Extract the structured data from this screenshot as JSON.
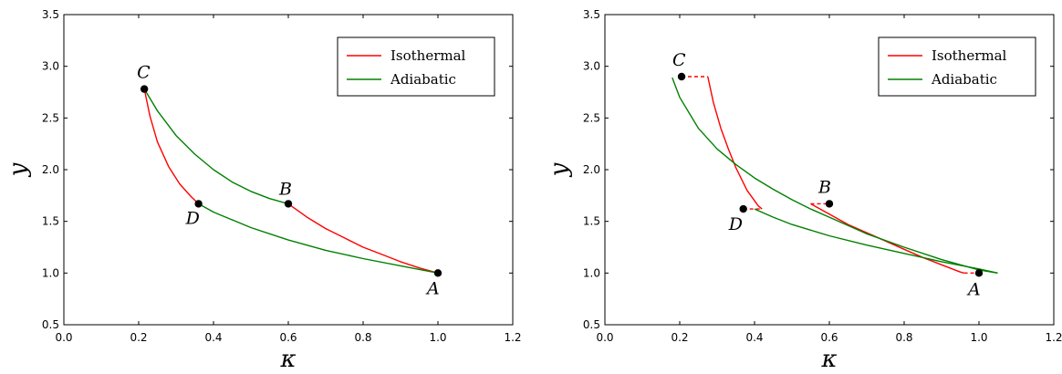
{
  "chart_data": [
    {
      "type": "line",
      "xlabel": "κ",
      "ylabel": "y",
      "xlim": [
        0.0,
        1.2
      ],
      "ylim": [
        0.5,
        3.5
      ],
      "xticks": [
        "0.0",
        "0.2",
        "0.4",
        "0.6",
        "0.8",
        "1.0",
        "1.2"
      ],
      "yticks": [
        "0.5",
        "1.0",
        "1.5",
        "2.0",
        "2.5",
        "3.0",
        "3.5"
      ],
      "grid": false,
      "legend": {
        "position": "top-right",
        "entries": [
          {
            "label": "Isothermal",
            "color": "#ff0000"
          },
          {
            "label": "Adiabatic",
            "color": "#008000"
          }
        ]
      },
      "points": [
        {
          "label": "C",
          "x": 0.215,
          "y": 2.78
        },
        {
          "label": "D",
          "x": 0.36,
          "y": 1.67
        },
        {
          "label": "B",
          "x": 0.6,
          "y": 1.67
        },
        {
          "label": "A",
          "x": 1.0,
          "y": 1.0
        }
      ],
      "series": [
        {
          "kind": "isothermal",
          "color": "#ff0000",
          "style": "solid",
          "x": [
            0.215,
            0.23,
            0.25,
            0.28,
            0.31,
            0.34,
            0.36
          ],
          "y": [
            2.78,
            2.52,
            2.27,
            2.03,
            1.86,
            1.74,
            1.67
          ]
        },
        {
          "kind": "isothermal",
          "color": "#ff0000",
          "style": "solid",
          "x": [
            0.6,
            0.65,
            0.7,
            0.75,
            0.8,
            0.85,
            0.9,
            0.95,
            1.0
          ],
          "y": [
            1.67,
            1.54,
            1.43,
            1.34,
            1.25,
            1.18,
            1.11,
            1.05,
            1.0
          ]
        },
        {
          "kind": "adiabatic",
          "color": "#008000",
          "style": "solid",
          "x": [
            0.215,
            0.25,
            0.3,
            0.35,
            0.4,
            0.45,
            0.5,
            0.55,
            0.6
          ],
          "y": [
            2.78,
            2.57,
            2.33,
            2.15,
            2.0,
            1.88,
            1.79,
            1.72,
            1.67
          ]
        },
        {
          "kind": "adiabatic",
          "color": "#008000",
          "style": "solid",
          "x": [
            0.36,
            0.4,
            0.5,
            0.6,
            0.7,
            0.8,
            0.9,
            1.0
          ],
          "y": [
            1.67,
            1.59,
            1.44,
            1.32,
            1.22,
            1.14,
            1.07,
            1.0
          ]
        }
      ]
    },
    {
      "type": "line",
      "xlabel": "κ",
      "ylabel": "y",
      "xlim": [
        0.0,
        1.2
      ],
      "ylim": [
        0.5,
        3.5
      ],
      "xticks": [
        "0.0",
        "0.2",
        "0.4",
        "0.6",
        "0.8",
        "1.0",
        "1.2"
      ],
      "yticks": [
        "0.5",
        "1.0",
        "1.5",
        "2.0",
        "2.5",
        "3.0",
        "3.5"
      ],
      "grid": false,
      "legend": {
        "position": "top-right",
        "entries": [
          {
            "label": "Isothermal",
            "color": "#ff0000"
          },
          {
            "label": "Adiabatic",
            "color": "#008000"
          }
        ]
      },
      "points": [
        {
          "label": "C",
          "x": 0.205,
          "y": 2.9
        },
        {
          "label": "D",
          "x": 0.37,
          "y": 1.62
        },
        {
          "label": "B",
          "x": 0.6,
          "y": 1.67
        },
        {
          "label": "A",
          "x": 1.0,
          "y": 1.0
        }
      ],
      "series": [
        {
          "kind": "isothermal",
          "color": "#ff0000",
          "style": "solid",
          "x": [
            0.275,
            0.29,
            0.31,
            0.33,
            0.35,
            0.38,
            0.41,
            0.42
          ],
          "y": [
            2.9,
            2.65,
            2.4,
            2.2,
            2.02,
            1.8,
            1.65,
            1.62
          ]
        },
        {
          "kind": "isothermal",
          "color": "#ff0000",
          "style": "solid",
          "x": [
            0.55,
            0.6,
            0.65,
            0.7,
            0.75,
            0.8,
            0.85,
            0.9,
            0.95,
            0.96
          ],
          "y": [
            1.67,
            1.57,
            1.47,
            1.39,
            1.31,
            1.23,
            1.15,
            1.08,
            1.01,
            1.0
          ]
        },
        {
          "kind": "isothermal",
          "color": "#ff0000",
          "style": "dashed",
          "x": [
            0.205,
            0.275
          ],
          "y": [
            2.9,
            2.9
          ]
        },
        {
          "kind": "isothermal",
          "color": "#ff0000",
          "style": "dashed",
          "x": [
            0.37,
            0.42
          ],
          "y": [
            1.62,
            1.62
          ]
        },
        {
          "kind": "isothermal",
          "color": "#ff0000",
          "style": "dashed",
          "x": [
            0.55,
            0.6
          ],
          "y": [
            1.67,
            1.67
          ]
        },
        {
          "kind": "isothermal",
          "color": "#ff0000",
          "style": "dashed",
          "x": [
            0.96,
            1.0
          ],
          "y": [
            1.0,
            1.0
          ]
        },
        {
          "kind": "adiabatic",
          "color": "#008000",
          "style": "solid",
          "x": [
            0.18,
            0.2,
            0.25,
            0.3,
            0.35,
            0.4,
            0.45,
            0.5,
            0.55,
            0.6,
            0.7,
            0.8,
            0.9,
            1.0,
            1.05
          ],
          "y": [
            2.89,
            2.7,
            2.4,
            2.2,
            2.05,
            1.92,
            1.81,
            1.71,
            1.62,
            1.54,
            1.38,
            1.25,
            1.13,
            1.03,
            1.0
          ]
        },
        {
          "kind": "adiabatic",
          "color": "#008000",
          "style": "solid",
          "x": [
            0.4,
            0.45,
            0.5,
            0.6,
            0.7,
            0.8,
            0.9,
            1.0,
            1.05
          ],
          "y": [
            1.62,
            1.54,
            1.47,
            1.36,
            1.27,
            1.19,
            1.11,
            1.04,
            1.0
          ]
        }
      ]
    }
  ]
}
